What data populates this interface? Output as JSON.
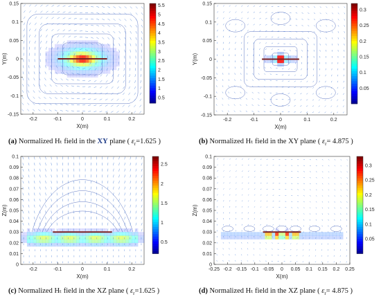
{
  "colors": {
    "vector": "#4a7fd6",
    "contour": "#2f4fb0",
    "antenna": "#7a2020",
    "antenna_glow": "#e7a6c9"
  },
  "chart_data": [
    {
      "type": "heatmap",
      "panel_id": "a",
      "caption": {
        "label": "(a)",
        "pre": "Normalized Hₜ field in the ",
        "plane": "XY",
        "post": " plane (",
        "eps_symbol": "ε",
        "eps_sub": "r",
        "eps_value": "=1.625",
        "close": ")"
      },
      "xlabel": "X(m)",
      "ylabel": "Y(m)",
      "xlim": [
        -0.25,
        0.25
      ],
      "ylim": [
        -0.15,
        0.15
      ],
      "xticks": [
        "-0.2",
        "-0.1",
        "0",
        "0.1",
        "0.2"
      ],
      "yticks": [
        "0.15",
        "0.1",
        "0.05",
        "0",
        "-0.05",
        "-0.1",
        "-0.15"
      ],
      "colorbar": {
        "ticks": [
          "5.5",
          "5",
          "4.5",
          "4",
          "3.5",
          "3",
          "2.5",
          "2",
          "1.5",
          "1",
          "0.5"
        ],
        "range": [
          0.2,
          5.6
        ]
      },
      "antenna": {
        "x": [
          -0.1,
          0.1
        ],
        "y": 0
      },
      "field": "broad"
    },
    {
      "type": "heatmap",
      "panel_id": "b",
      "caption": {
        "label": "(b)",
        "pre": "Normalized Hₜ field in the ",
        "plane": "XY",
        "post": " plane (",
        "eps_symbol": "ε",
        "eps_sub": "r",
        "eps_value": "= 4.875",
        "close": ")"
      },
      "xlabel": "X(m)",
      "ylabel": "Y(m)",
      "xlim": [
        -0.25,
        0.25
      ],
      "ylim": [
        -0.15,
        0.15
      ],
      "xticks": [
        "-0.2",
        "-0.1",
        "0",
        "0.1",
        "0.2"
      ],
      "yticks": [
        "0.15",
        "0.1",
        "0.05",
        "0",
        "-0.05",
        "-0.1",
        "-0.15"
      ],
      "colorbar": {
        "ticks": [
          "0.3",
          "0.25",
          "0.2",
          "0.15",
          "0.1",
          "0.05"
        ],
        "range": [
          0.0,
          0.32
        ]
      },
      "antenna": {
        "x": [
          -0.07,
          0.07
        ],
        "y": 0
      },
      "field": "narrow"
    },
    {
      "type": "heatmap",
      "panel_id": "c",
      "caption": {
        "label": "(c)",
        "pre": "Normalized Hₜ field in the ",
        "plane": "XZ",
        "post": " plane (",
        "eps_symbol": "ε",
        "eps_sub": "r",
        "eps_value": "=1.625",
        "close": ")"
      },
      "xlabel": "X(m)",
      "ylabel": "Z(m)",
      "xlim": [
        -0.25,
        0.25
      ],
      "ylim": [
        0,
        0.1
      ],
      "xticks": [
        "-0.2",
        "-0.1",
        "0",
        "0.1",
        "0.2"
      ],
      "yticks": [
        "0.1",
        "0.09",
        "0.08",
        "0.07",
        "0.06",
        "0.05",
        "0.04",
        "0.03",
        "0.02",
        "0.01",
        "0"
      ],
      "colorbar": {
        "ticks": [
          "2.5",
          "2",
          "1.5",
          "1",
          "0.5"
        ],
        "range": [
          0.2,
          2.7
        ]
      },
      "antenna": {
        "x": [
          -0.12,
          0.12
        ],
        "y": 0.03
      },
      "field": "sheet"
    },
    {
      "type": "heatmap",
      "panel_id": "d",
      "caption": {
        "label": "(d)",
        "pre": "Normalized Hₜ field in the ",
        "plane": "XZ",
        "post": " plane (",
        "eps_symbol": "ε",
        "eps_sub": "r",
        "eps_value": "= 4.875",
        "close": ")"
      },
      "xlabel": "X(m)",
      "ylabel": "Z(m)",
      "xlim": [
        -0.25,
        0.25
      ],
      "ylim": [
        0,
        0.1
      ],
      "xticks": [
        "-0.25",
        "-0.2",
        "-0.15",
        "-0.1",
        "-0.05",
        "0",
        "0.05",
        "0.1",
        "0.15",
        "0.2",
        "0.25"
      ],
      "yticks": [
        "0.1",
        "0.09",
        "0.08",
        "0.07",
        "0.06",
        "0.05",
        "0.04",
        "0.03",
        "0.02",
        "0.01",
        "0"
      ],
      "colorbar": {
        "ticks": [
          "0.3",
          "0.25",
          "0.2",
          "0.15",
          "0.1",
          "0.05"
        ],
        "range": [
          0.0,
          0.33
        ]
      },
      "antenna": {
        "x": [
          -0.07,
          0.07
        ],
        "y": 0.03
      },
      "field": "spots"
    }
  ]
}
